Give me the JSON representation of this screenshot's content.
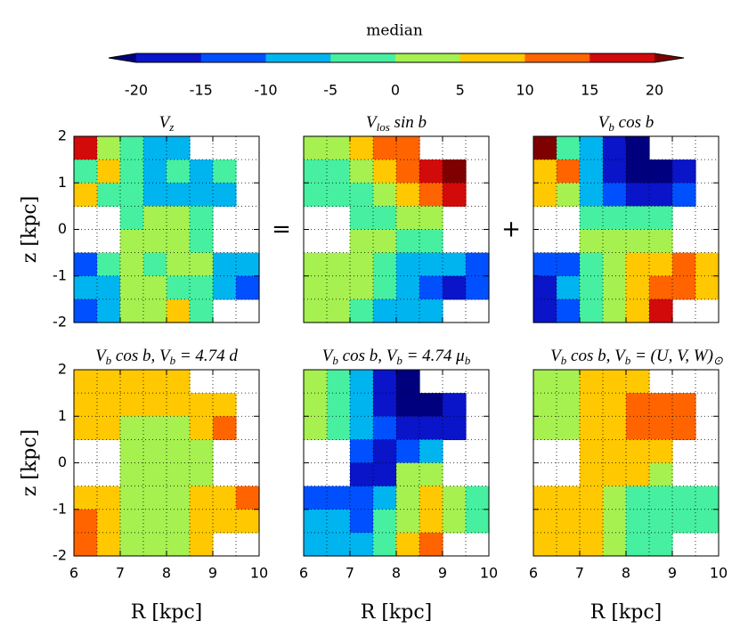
{
  "chart_data": {
    "type": "heatmap",
    "colorbar": {
      "label": "median",
      "ticks": [
        -20,
        -15,
        -10,
        -5,
        0,
        5,
        10,
        15,
        20
      ],
      "colors": [
        "#0a14c8",
        "#0050ff",
        "#00b4f0",
        "#46f0a0",
        "#a6f050",
        "#ffc800",
        "#ff6400",
        "#d20a0a"
      ],
      "under": "#00007f",
      "over": "#7f0000"
    },
    "xlabel": "R [kpc]",
    "ylabel": "z [kpc]",
    "xlim": [
      6,
      10
    ],
    "ylim": [
      -2,
      2
    ],
    "xticks": [
      6,
      7,
      8,
      9,
      10
    ],
    "yticks": [
      -2,
      -1,
      0,
      1,
      2
    ],
    "grid": true,
    "xbins": [
      6,
      6.5,
      7,
      7.5,
      8,
      8.5,
      9,
      9.5,
      10
    ],
    "ybins": [
      2,
      1.5,
      1,
      0.5,
      0,
      -0.5,
      -1,
      -1.5,
      -2
    ],
    "operators": [
      "=",
      "+"
    ],
    "panels": [
      {
        "title": [
          "V",
          "z"
        ],
        "values": [
          [
            18,
            2,
            -2,
            -6,
            -8,
            null,
            null,
            null
          ],
          [
            -2,
            8,
            -4,
            -6,
            -4,
            -8,
            -3,
            null
          ],
          [
            6,
            -4,
            -2,
            -6,
            -7,
            -8,
            -10,
            null
          ],
          [
            null,
            null,
            -3,
            2,
            1,
            -2,
            null,
            null
          ],
          [
            null,
            null,
            2,
            3,
            1,
            -2,
            null,
            null
          ],
          [
            -12,
            -4,
            2,
            -2,
            1,
            3,
            -6,
            -10
          ],
          [
            -10,
            -8,
            3,
            2,
            -2,
            -3,
            -8,
            -12
          ],
          [
            -14,
            -6,
            4,
            2,
            7,
            -3,
            null,
            null
          ]
        ]
      },
      {
        "title": [
          "V",
          "los",
          " sin b"
        ],
        "values": [
          [
            3,
            4,
            6,
            11,
            14,
            null,
            null,
            null
          ],
          [
            -3,
            -2,
            2,
            8,
            13,
            17,
            21,
            null
          ],
          [
            -2,
            -3,
            -4,
            1,
            6,
            12,
            16,
            null
          ],
          [
            null,
            null,
            -3,
            -2,
            2,
            4,
            null,
            null
          ],
          [
            null,
            null,
            3,
            3,
            -2,
            -4,
            null,
            null
          ],
          [
            3,
            3,
            2,
            -2,
            -6,
            -8,
            -10,
            -12
          ],
          [
            3,
            2,
            1,
            -4,
            -10,
            -14,
            -17,
            -13
          ],
          [
            4,
            3,
            -2,
            -8,
            -10,
            -6,
            null,
            null
          ]
        ]
      },
      {
        "title": [
          "V",
          "b",
          " cos b"
        ],
        "values": [
          [
            22,
            -3,
            -10,
            -18,
            -22,
            null,
            null,
            null
          ],
          [
            6,
            12,
            -6,
            -18,
            -22,
            -21,
            -17,
            null
          ],
          [
            8,
            3,
            -8,
            -14,
            -20,
            -18,
            -12,
            null
          ],
          [
            null,
            null,
            -3,
            -2,
            -3,
            -4,
            null,
            null
          ],
          [
            null,
            null,
            2,
            3,
            4,
            3,
            null,
            null
          ],
          [
            -14,
            -12,
            -3,
            2,
            6,
            8,
            12,
            9
          ],
          [
            -16,
            -10,
            -4,
            3,
            6,
            14,
            13,
            6
          ],
          [
            -18,
            -14,
            -4,
            4,
            8,
            18,
            null,
            null
          ]
        ]
      },
      {
        "title": [
          "V",
          "b",
          " cos b, V",
          "b",
          " = 4.74 d"
        ],
        "values": [
          [
            7,
            7,
            7,
            7,
            7,
            null,
            null,
            null
          ],
          [
            7,
            7,
            6,
            5,
            6,
            7,
            8,
            null
          ],
          [
            7,
            7,
            4,
            3,
            4,
            6,
            12,
            null
          ],
          [
            null,
            null,
            4,
            3,
            3,
            4,
            null,
            null
          ],
          [
            null,
            null,
            4,
            3,
            3,
            4,
            null,
            null
          ],
          [
            8,
            7,
            4,
            3,
            3,
            5,
            8,
            12
          ],
          [
            11,
            7,
            4,
            3,
            3,
            5,
            7,
            9
          ],
          [
            12,
            7,
            4,
            3,
            3,
            6,
            null,
            null
          ]
        ]
      },
      {
        "title": [
          "V",
          "b",
          " cos b, V",
          "b",
          " = 4.74 μ",
          "b"
        ],
        "values": [
          [
            1,
            -2,
            -6,
            -18,
            -22,
            null,
            null,
            null
          ],
          [
            2,
            -3,
            -8,
            -16,
            -22,
            -22,
            -18,
            null
          ],
          [
            2,
            -4,
            -10,
            -14,
            -20,
            -20,
            -16,
            null
          ],
          [
            null,
            null,
            -14,
            -16,
            -12,
            -6,
            null,
            null
          ],
          [
            null,
            null,
            -16,
            -17,
            2,
            4,
            null,
            null
          ],
          [
            -12,
            -14,
            -15,
            -8,
            3,
            5,
            3,
            -2
          ],
          [
            -9,
            -10,
            -12,
            -5,
            4,
            6,
            4,
            -2
          ],
          [
            -8,
            -9,
            -10,
            -4,
            5,
            12,
            null,
            null
          ]
        ]
      },
      {
        "title": [
          "V",
          "b",
          " cos b, V",
          "b",
          " = (U, V, W)",
          "⊙"
        ],
        "values": [
          [
            3,
            4,
            6,
            8,
            8,
            null,
            null,
            null
          ],
          [
            3,
            4,
            6,
            8,
            11,
            12,
            12,
            null
          ],
          [
            2,
            4,
            6,
            8,
            11,
            11,
            11,
            null
          ],
          [
            null,
            null,
            7,
            8,
            8,
            5,
            null,
            null
          ],
          [
            null,
            null,
            7,
            7,
            5,
            2,
            null,
            null
          ],
          [
            7,
            7,
            6,
            3,
            -2,
            -2,
            -2,
            -2
          ],
          [
            7,
            7,
            6,
            2,
            -3,
            -3,
            -3,
            -2
          ],
          [
            7,
            7,
            6,
            3,
            -2,
            -3,
            null,
            null
          ]
        ]
      }
    ]
  }
}
